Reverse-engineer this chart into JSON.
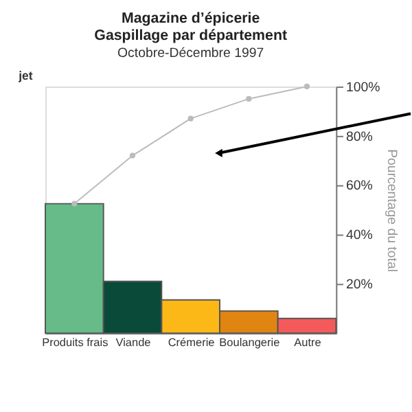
{
  "chart_data": {
    "type": "bar",
    "title": "Magazine d’épicerie\nGaspillage par département",
    "subtitle": "Octobre-Décembre 1997",
    "ylabel": "Pourcentage du total",
    "categories": [
      "Produits frais",
      "Viande",
      "Crémerie",
      "Boulangerie",
      "Autre"
    ],
    "series": [
      {
        "colors": [
          "#66bb88",
          "#0a4a38",
          "#fbb817",
          "#e08412",
          "#f55a5a"
        ],
        "values": [
          52.5,
          21,
          13.5,
          9,
          6
        ]
      },
      {
        "type": "line",
        "color": "#bbbbbb",
        "marker": "circle",
        "values": [
          52.5,
          72,
          87,
          95,
          100
        ]
      }
    ],
    "ylim": [
      0,
      100
    ],
    "yticks": [
      {
        "value": 20,
        "label": "20%"
      },
      {
        "value": 40,
        "label": "40%"
      },
      {
        "value": 60,
        "label": "60%"
      },
      {
        "value": 80,
        "label": "80%"
      },
      {
        "value": 100,
        "label": "100%"
      }
    ],
    "annotations": [
      "jet"
    ]
  }
}
